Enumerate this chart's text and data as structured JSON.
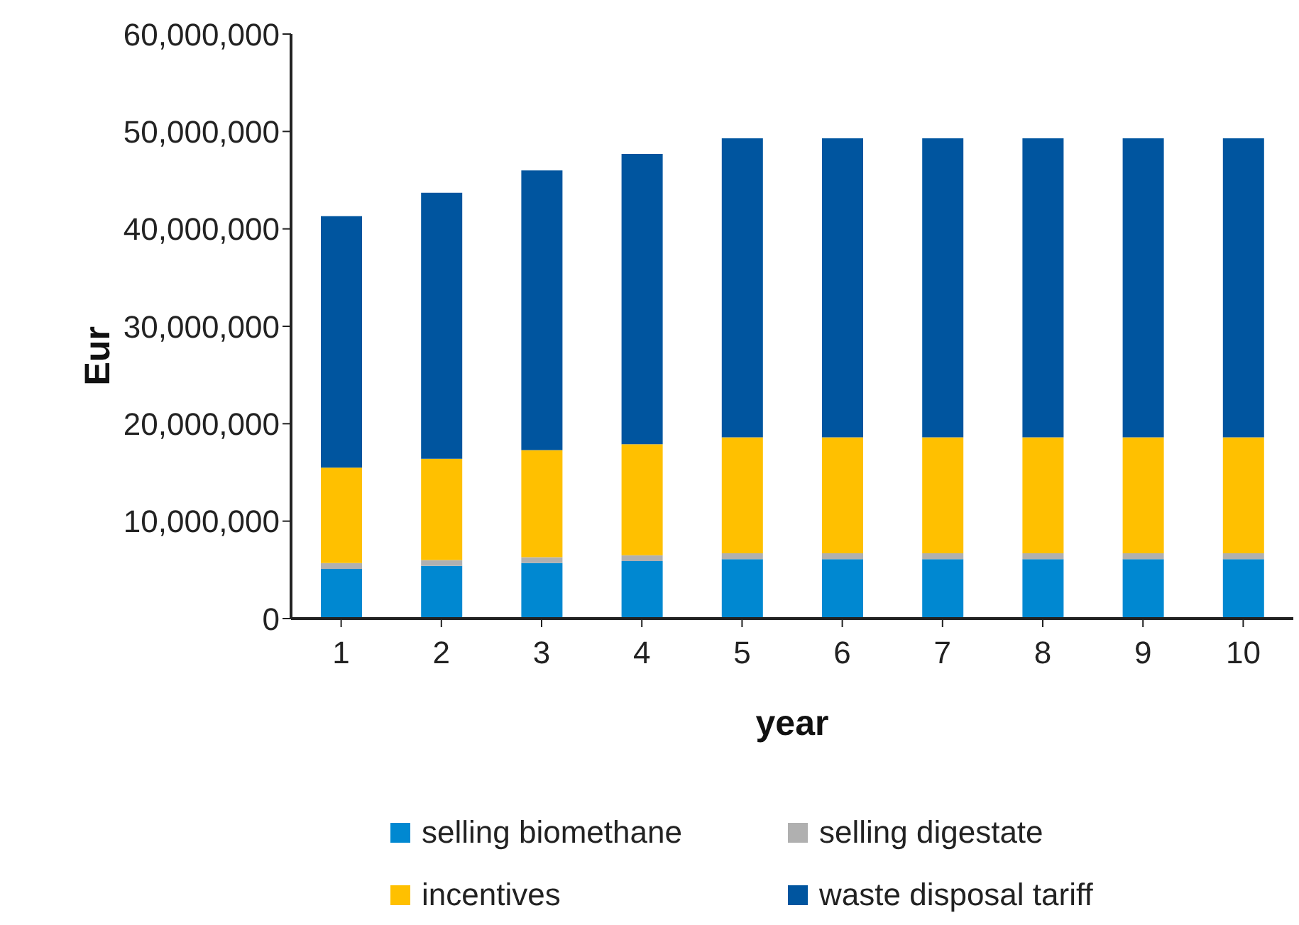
{
  "chart_data": {
    "type": "bar",
    "stacked": true,
    "xlabel": "year",
    "ylabel": "Eur",
    "categories": [
      "1",
      "2",
      "3",
      "4",
      "5",
      "6",
      "7",
      "8",
      "9",
      "10"
    ],
    "series": [
      {
        "name": "selling biomethane",
        "color": "#0088d1",
        "values": [
          5100000,
          5400000,
          5700000,
          5900000,
          6100000,
          6100000,
          6100000,
          6100000,
          6100000,
          6100000
        ]
      },
      {
        "name": "selling digestate",
        "color": "#b0b0b0",
        "values": [
          600000,
          600000,
          600000,
          600000,
          600000,
          600000,
          600000,
          600000,
          600000,
          600000
        ]
      },
      {
        "name": "incentives",
        "color": "#ffc000",
        "values": [
          9800000,
          10400000,
          11000000,
          11400000,
          11900000,
          11900000,
          11900000,
          11900000,
          11900000,
          11900000
        ]
      },
      {
        "name": "waste disposal tariff",
        "color": "#00559f",
        "values": [
          25800000,
          27300000,
          28700000,
          29800000,
          30700000,
          30700000,
          30700000,
          30700000,
          30700000,
          30700000
        ]
      }
    ],
    "ylim": [
      0,
      60000000
    ],
    "yticks": [
      0,
      {
        "value": 10000000,
        "label": "10,000,000"
      },
      {
        "value": 20000000,
        "label": "20,000,000"
      },
      {
        "value": 30000000,
        "label": "30,000,000"
      },
      {
        "value": 40000000,
        "label": "40,000,000"
      },
      {
        "value": 50000000,
        "label": "50,000,000"
      },
      {
        "value": 60000000,
        "label": "60,000,000"
      }
    ],
    "grid": false,
    "legend": "bottom"
  }
}
